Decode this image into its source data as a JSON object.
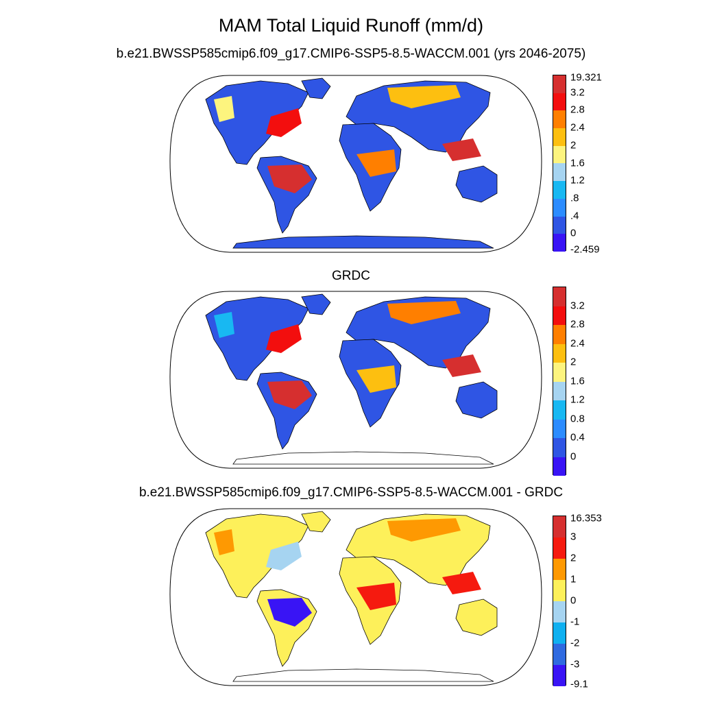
{
  "title": "MAM Total Liquid Runoff (mm/d)",
  "panels": [
    {
      "subtitle": "b.e21.BWSSP585cmip6.f09_g17.CMIP6-SSP5-8.5-WACCM.001 (yrs 2046-2075)",
      "colors": [
        "#d62f2f",
        "#f30e0e",
        "#ff7f00",
        "#fdbf10",
        "#fdf47e",
        "#a6d4f1",
        "#18b8f2",
        "#2c8cff",
        "#2f55e4",
        "#3914f5"
      ],
      "labels": [
        "19.321",
        "3.2",
        "2.8",
        "2.4",
        "2",
        "1.6",
        "1.2",
        ".8",
        ".4",
        "0",
        "-2.459"
      ],
      "map": {
        "ocean": "#ffffff",
        "land_default": "#2f55e4",
        "antarctica": "#2f55e4",
        "hotspots": [
          {
            "region": "amazon",
            "color": "#d62f2f"
          },
          {
            "region": "central-africa",
            "color": "#ff7f00"
          },
          {
            "region": "eastern-north-america",
            "color": "#f30e0e"
          },
          {
            "region": "siberia",
            "color": "#fdbf10"
          },
          {
            "region": "southeast-asia",
            "color": "#d62f2f"
          },
          {
            "region": "western-canada",
            "color": "#fdf47e"
          }
        ]
      }
    },
    {
      "subtitle": "GRDC",
      "colors": [
        "#d62f2f",
        "#f30e0e",
        "#ff7f00",
        "#fdbf10",
        "#fdf47e",
        "#a6d4f1",
        "#18b8f2",
        "#2c8cff",
        "#2f55e4",
        "#3914f5"
      ],
      "labels": [
        "",
        "3.2",
        "2.8",
        "2.4",
        "2",
        "1.6",
        "1.2",
        "0.8",
        "0.4",
        "0",
        ""
      ],
      "map": {
        "ocean": "#ffffff",
        "land_default": "#2f55e4",
        "antarctica": "#ffffff",
        "hotspots": [
          {
            "region": "amazon",
            "color": "#d62f2f"
          },
          {
            "region": "central-africa",
            "color": "#fdbf10"
          },
          {
            "region": "eastern-north-america",
            "color": "#f30e0e"
          },
          {
            "region": "siberia",
            "color": "#ff7f00"
          },
          {
            "region": "southeast-asia",
            "color": "#d62f2f"
          },
          {
            "region": "western-canada",
            "color": "#18b8f2"
          }
        ]
      }
    },
    {
      "subtitle": "b.e21.BWSSP585cmip6.f09_g17.CMIP6-SSP5-8.5-WACCM.001 - GRDC",
      "colors": [
        "#d62f2f",
        "#f51a0f",
        "#fe9902",
        "#fdf05a",
        "#a6d4f1",
        "#0fb0f0",
        "#2f6ae0",
        "#3914f5"
      ],
      "labels": [
        "16.353",
        "3",
        "2",
        "1",
        "0",
        "-1",
        "-2",
        "-3",
        "-9.1"
      ],
      "map": {
        "ocean": "#ffffff",
        "land_default": "#fdf05a",
        "antarctica": "#ffffff",
        "hotspots": [
          {
            "region": "amazon",
            "color": "#3914f5"
          },
          {
            "region": "central-africa",
            "color": "#f51a0f"
          },
          {
            "region": "eastern-north-america",
            "color": "#a6d4f1"
          },
          {
            "region": "siberia",
            "color": "#fe9902"
          },
          {
            "region": "southeast-asia",
            "color": "#f51a0f"
          },
          {
            "region": "western-canada",
            "color": "#fe9902"
          }
        ]
      }
    }
  ]
}
